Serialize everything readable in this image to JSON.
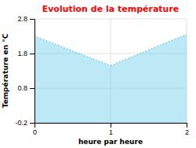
{
  "chart_data": {
    "type": "area",
    "title": "Evolution de la température",
    "xlabel": "heure par heure",
    "ylabel": "Température en °C",
    "x": [
      0,
      1,
      2
    ],
    "values": [
      2.3,
      1.45,
      2.35
    ],
    "color": "#6dcde8",
    "line_style": "dotted",
    "xlim": [
      0,
      2
    ],
    "ylim": [
      -0.2,
      2.8
    ],
    "xticks": [
      0,
      1,
      2
    ],
    "yticks": [
      -0.2,
      0.8,
      1.8,
      2.8
    ],
    "grid": true
  }
}
